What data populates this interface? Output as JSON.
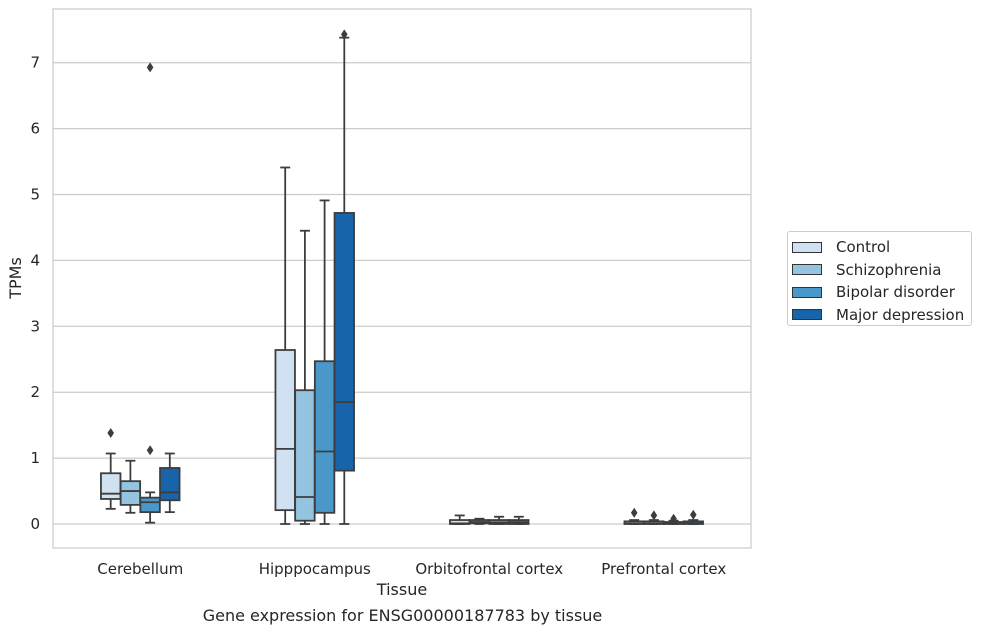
{
  "caption": "Gene expression for ENSG00000187783 by tissue",
  "chart_data": {
    "type": "boxplot",
    "xlabel": "Tissue",
    "ylabel": "TPMs",
    "ylim": [
      -0.35,
      7.8
    ],
    "yticks": [
      0,
      1,
      2,
      3,
      4,
      5,
      6,
      7
    ],
    "grid": "horizontal",
    "legend_position": "right",
    "categories": [
      "Cerebellum",
      "Hipppocampus",
      "Orbitofrontal cortex",
      "Prefrontal cortex"
    ],
    "series": [
      {
        "name": "Control",
        "color": "#d0e1f2",
        "boxes": [
          {
            "whisker_low": 0.23,
            "q1": 0.38,
            "median": 0.46,
            "q3": 0.77,
            "whisker_high": 1.07,
            "outliers": [
              1.38
            ]
          },
          {
            "whisker_low": 0.0,
            "q1": 0.21,
            "median": 1.14,
            "q3": 2.64,
            "whisker_high": 5.41,
            "outliers": []
          },
          {
            "whisker_low": 0.0,
            "q1": 0.0,
            "median": 0.01,
            "q3": 0.06,
            "whisker_high": 0.13,
            "outliers": []
          },
          {
            "whisker_low": 0.0,
            "q1": 0.0,
            "median": 0.01,
            "q3": 0.04,
            "whisker_high": 0.06,
            "outliers": [
              0.17
            ]
          }
        ]
      },
      {
        "name": "Schizophrenia",
        "color": "#94c4df",
        "boxes": [
          {
            "whisker_low": 0.17,
            "q1": 0.29,
            "median": 0.5,
            "q3": 0.65,
            "whisker_high": 0.96,
            "outliers": []
          },
          {
            "whisker_low": 0.0,
            "q1": 0.05,
            "median": 0.41,
            "q3": 2.03,
            "whisker_high": 4.45,
            "outliers": []
          },
          {
            "whisker_low": 0.0,
            "q1": 0.01,
            "median": 0.03,
            "q3": 0.06,
            "whisker_high": 0.08,
            "outliers": []
          },
          {
            "whisker_low": 0.0,
            "q1": 0.0,
            "median": 0.01,
            "q3": 0.04,
            "whisker_high": 0.06,
            "outliers": [
              0.13
            ]
          }
        ]
      },
      {
        "name": "Bipolar disorder",
        "color": "#4a98c9",
        "boxes": [
          {
            "whisker_low": 0.02,
            "q1": 0.18,
            "median": 0.33,
            "q3": 0.4,
            "whisker_high": 0.48,
            "outliers": [
              1.12,
              6.93
            ]
          },
          {
            "whisker_low": 0.0,
            "q1": 0.17,
            "median": 1.1,
            "q3": 2.47,
            "whisker_high": 4.91,
            "outliers": []
          },
          {
            "whisker_low": 0.0,
            "q1": 0.0,
            "median": 0.02,
            "q3": 0.06,
            "whisker_high": 0.11,
            "outliers": []
          },
          {
            "whisker_low": 0.0,
            "q1": 0.0,
            "median": 0.01,
            "q3": 0.03,
            "whisker_high": 0.05,
            "outliers": [
              0.08
            ]
          }
        ]
      },
      {
        "name": "Major depression",
        "color": "#1764ab",
        "boxes": [
          {
            "whisker_low": 0.18,
            "q1": 0.36,
            "median": 0.48,
            "q3": 0.85,
            "whisker_high": 1.07,
            "outliers": []
          },
          {
            "whisker_low": 0.0,
            "q1": 0.81,
            "median": 1.85,
            "q3": 4.72,
            "whisker_high": 7.38,
            "outliers": [
              7.43
            ]
          },
          {
            "whisker_low": 0.0,
            "q1": 0.0,
            "median": 0.02,
            "q3": 0.06,
            "whisker_high": 0.11,
            "outliers": []
          },
          {
            "whisker_low": 0.0,
            "q1": 0.0,
            "median": 0.01,
            "q3": 0.04,
            "whisker_high": 0.06,
            "outliers": [
              0.14
            ]
          }
        ]
      }
    ]
  }
}
